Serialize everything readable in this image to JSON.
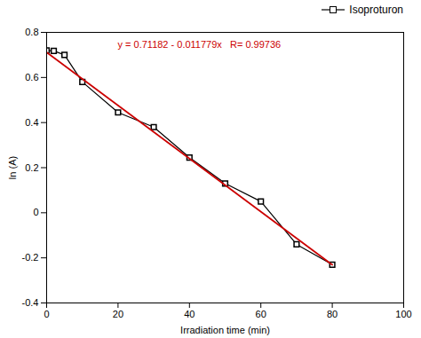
{
  "chart_data": {
    "type": "line",
    "x_label": "Irradiation time (min)",
    "y_label": "ln (A)",
    "annotations": [
      {
        "text": "y = 0.71182 - 0.011779x   R= 0.99736",
        "color": "#cc0000"
      }
    ],
    "series": [
      {
        "name": "Isoproturon",
        "color": "#000000",
        "marker": "square",
        "type": "line",
        "x": [
          0,
          2,
          5,
          10,
          20,
          30,
          40,
          50,
          60,
          70,
          80
        ],
        "values": [
          0.72,
          0.718,
          0.7,
          0.58,
          0.445,
          0.38,
          0.245,
          0.13,
          0.05,
          -0.14,
          -0.23
        ]
      },
      {
        "color": "#cc0000",
        "type": "line",
        "x": [
          0,
          80
        ],
        "values": [
          0.71182,
          -0.2305
        ]
      }
    ],
    "xlim": [
      0,
      100
    ],
    "ylim": [
      -0.4,
      0.8
    ],
    "xticks": [
      0,
      20,
      40,
      60,
      80,
      100
    ],
    "yticks": [
      -0.4,
      -0.2,
      0,
      0.2,
      0.4,
      0.6,
      0.8
    ],
    "grid": false,
    "legend": "upper right"
  }
}
